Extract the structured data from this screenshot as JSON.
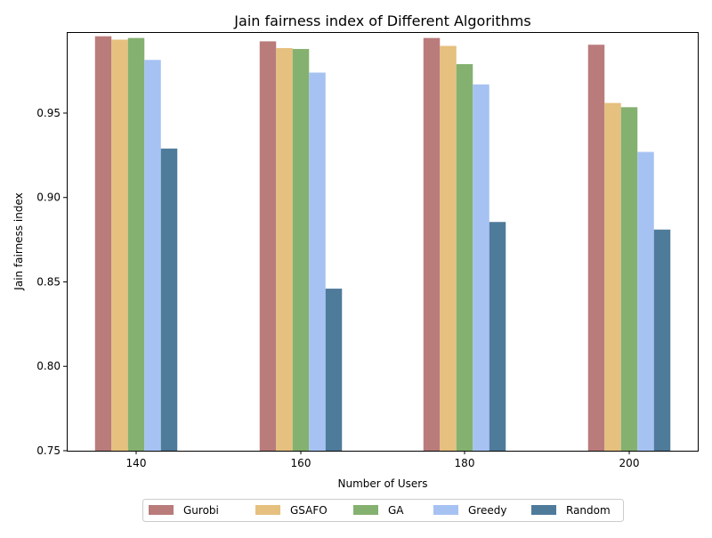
{
  "chart_data": {
    "type": "bar",
    "title": "Jain fairness index of Different Algorithms",
    "xlabel": "Number of Users",
    "ylabel": "Jain fairness index",
    "categories": [
      "140",
      "160",
      "180",
      "200"
    ],
    "ylim": [
      0.75,
      0.998
    ],
    "yticks": [
      "0.75",
      "0.80",
      "0.85",
      "0.90",
      "0.95"
    ],
    "grid": false,
    "legend_position": "bottom-center",
    "series": [
      {
        "name": "Gurobi",
        "color": "#b97c7b",
        "values": [
          0.9955,
          0.9925,
          0.9945,
          0.9905
        ]
      },
      {
        "name": "GSAFO",
        "color": "#e5c07e",
        "values": [
          0.9935,
          0.9885,
          0.9898,
          0.956
        ]
      },
      {
        "name": "GA",
        "color": "#85b170",
        "values": [
          0.9945,
          0.988,
          0.979,
          0.9535
        ]
      },
      {
        "name": "Greedy",
        "color": "#a6c2f2",
        "values": [
          0.9815,
          0.974,
          0.967,
          0.927
        ]
      },
      {
        "name": "Random",
        "color": "#4f7b9b",
        "values": [
          0.929,
          0.846,
          0.8855,
          0.881
        ]
      }
    ]
  }
}
